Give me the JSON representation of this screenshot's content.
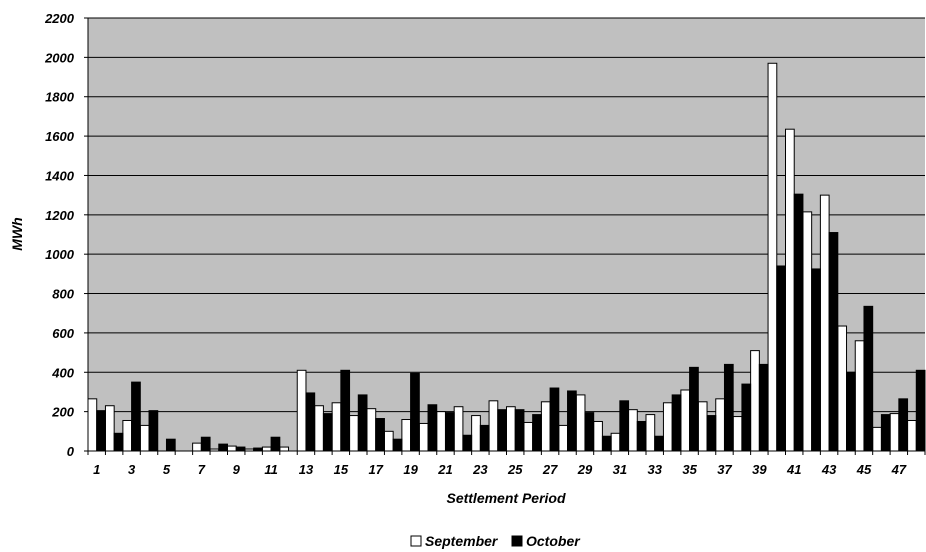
{
  "chart_data": {
    "type": "bar",
    "xlabel": "Settlement Period",
    "ylabel": "MWh",
    "ylim": [
      0,
      2200
    ],
    "ytick_step": 200,
    "xtick_labels_every": 2,
    "grid": true,
    "legend_placement": "bottom",
    "categories": [
      1,
      2,
      3,
      4,
      5,
      6,
      7,
      8,
      9,
      10,
      11,
      12,
      13,
      14,
      15,
      16,
      17,
      18,
      19,
      20,
      21,
      22,
      23,
      24,
      25,
      26,
      27,
      28,
      29,
      30,
      31,
      32,
      33,
      34,
      35,
      36,
      37,
      38,
      39,
      40,
      41,
      42,
      43,
      44,
      45,
      46,
      47,
      48
    ],
    "series": [
      {
        "name": "September",
        "color": "#ffffff",
        "values": [
          265,
          230,
          155,
          130,
          0,
          0,
          40,
          10,
          25,
          10,
          20,
          20,
          410,
          230,
          245,
          180,
          215,
          100,
          160,
          140,
          200,
          225,
          180,
          255,
          225,
          145,
          250,
          130,
          285,
          150,
          90,
          210,
          185,
          245,
          310,
          250,
          265,
          175,
          510,
          1970,
          1635,
          1215,
          1300,
          635,
          560,
          120,
          190,
          155
        ]
      },
      {
        "name": "October",
        "color": "#000000",
        "values": [
          205,
          90,
          350,
          205,
          60,
          0,
          70,
          35,
          20,
          15,
          70,
          0,
          295,
          190,
          410,
          285,
          165,
          60,
          395,
          235,
          195,
          80,
          130,
          210,
          210,
          185,
          320,
          305,
          195,
          75,
          255,
          150,
          75,
          285,
          425,
          180,
          440,
          340,
          440,
          940,
          1305,
          925,
          1110,
          400,
          735,
          185,
          265,
          410
        ]
      }
    ]
  }
}
